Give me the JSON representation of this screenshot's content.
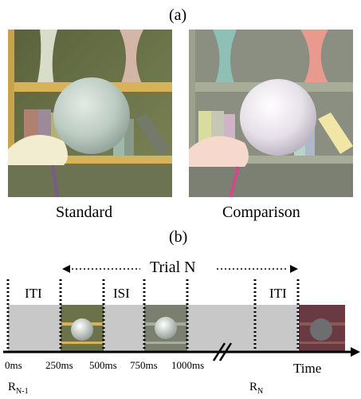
{
  "panel_a": {
    "label": "(a)",
    "standard_caption": "Standard",
    "comparison_caption": "Comparison"
  },
  "panel_b": {
    "label": "(b)",
    "trial_label": "Trial N",
    "intervals": {
      "iti_left": "ITI",
      "isi": "ISI",
      "iti_right": "ITI"
    },
    "time_labels": [
      "0ms",
      "250ms",
      "500ms",
      "750ms",
      "1000ms"
    ],
    "axis_label": "Time",
    "response_prev": {
      "base": "R",
      "sub": "N-1"
    },
    "response_curr": {
      "base": "R",
      "sub": "N"
    }
  }
}
